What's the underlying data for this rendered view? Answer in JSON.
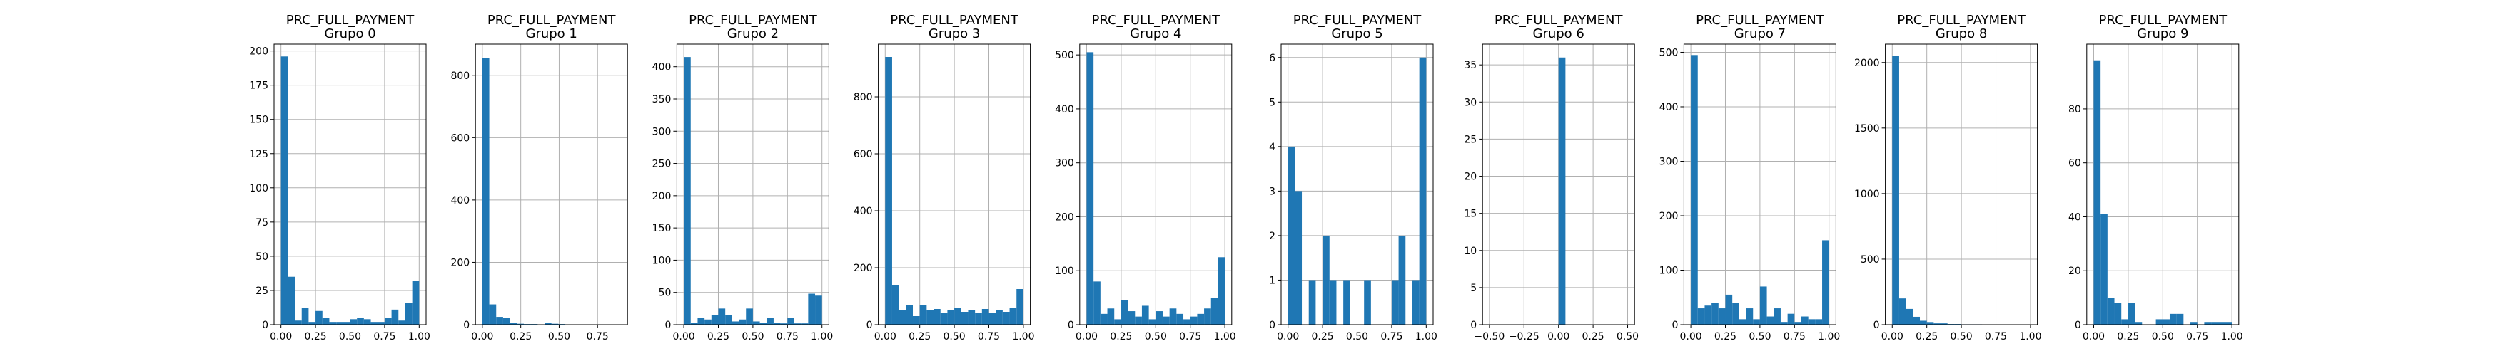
{
  "figure": {
    "bar_color": "#1f77b4",
    "grid_color": "#b0b0b0",
    "background": "#ffffff"
  },
  "chart_data": [
    {
      "type": "bar",
      "title": "PRC_FULL_PAYMENT\nGrupo 0",
      "xlim": [
        -0.05,
        1.05
      ],
      "ylim": [
        0,
        205
      ],
      "xticks": [
        0.0,
        0.25,
        0.5,
        0.75,
        1.0
      ],
      "xtick_labels": [
        "0.00",
        "0.25",
        "0.50",
        "0.75",
        "1.00"
      ],
      "yticks": [
        0,
        25,
        50,
        75,
        100,
        125,
        150,
        175,
        200
      ],
      "ytick_labels": [
        "0",
        "25",
        "50",
        "75",
        "100",
        "125",
        "150",
        "175",
        "200"
      ],
      "bin_start": 0,
      "bin_width": 0.05,
      "grid": true,
      "values": [
        196,
        35,
        3,
        12,
        2,
        10,
        5,
        2,
        2,
        2,
        4,
        5,
        4,
        2,
        2,
        5,
        11,
        3,
        16,
        32
      ]
    },
    {
      "type": "bar",
      "title": "PRC_FULL_PAYMENT\nGrupo 1",
      "xlim": [
        -0.045,
        0.945
      ],
      "ylim": [
        0,
        900
      ],
      "xticks": [
        0.0,
        0.25,
        0.5,
        0.75
      ],
      "xtick_labels": [
        "0.00",
        "0.25",
        "0.50",
        "0.75"
      ],
      "yticks": [
        0,
        200,
        400,
        600,
        800
      ],
      "ytick_labels": [
        "0",
        "200",
        "400",
        "600",
        "800"
      ],
      "bin_start": 0,
      "bin_width": 0.045,
      "grid": true,
      "values": [
        855,
        65,
        25,
        22,
        5,
        3,
        2,
        2,
        1,
        5,
        3,
        2,
        1,
        1,
        1,
        1,
        1,
        0,
        1,
        1
      ]
    },
    {
      "type": "bar",
      "title": "PRC_FULL_PAYMENT\nGrupo 2",
      "xlim": [
        -0.05,
        1.05
      ],
      "ylim": [
        0,
        435
      ],
      "xticks": [
        0.0,
        0.25,
        0.5,
        0.75,
        1.0
      ],
      "xtick_labels": [
        "0.00",
        "0.25",
        "0.50",
        "0.75",
        "1.00"
      ],
      "yticks": [
        0,
        50,
        100,
        150,
        200,
        250,
        300,
        350,
        400
      ],
      "ytick_labels": [
        "0",
        "50",
        "100",
        "150",
        "200",
        "250",
        "300",
        "350",
        "400"
      ],
      "bin_start": 0,
      "bin_width": 0.05,
      "grid": true,
      "values": [
        415,
        3,
        10,
        8,
        15,
        25,
        15,
        5,
        8,
        25,
        5,
        3,
        10,
        3,
        2,
        10,
        2,
        2,
        48,
        45
      ]
    },
    {
      "type": "bar",
      "title": "PRC_FULL_PAYMENT\nGrupo 3",
      "xlim": [
        -0.05,
        1.05
      ],
      "ylim": [
        0,
        985
      ],
      "xticks": [
        0.0,
        0.25,
        0.5,
        0.75,
        1.0
      ],
      "xtick_labels": [
        "0.00",
        "0.25",
        "0.50",
        "0.75",
        "1.00"
      ],
      "yticks": [
        0,
        200,
        400,
        600,
        800
      ],
      "ytick_labels": [
        "0",
        "200",
        "400",
        "600",
        "800"
      ],
      "bin_start": 0,
      "bin_width": 0.05,
      "grid": true,
      "values": [
        940,
        140,
        50,
        70,
        30,
        70,
        50,
        55,
        40,
        50,
        60,
        45,
        50,
        40,
        55,
        40,
        50,
        45,
        60,
        125
      ]
    },
    {
      "type": "bar",
      "title": "PRC_FULL_PAYMENT\nGrupo 4",
      "xlim": [
        -0.05,
        1.05
      ],
      "ylim": [
        0,
        520
      ],
      "xticks": [
        0.0,
        0.25,
        0.5,
        0.75,
        1.0
      ],
      "xtick_labels": [
        "0.00",
        "0.25",
        "0.50",
        "0.75",
        "1.00"
      ],
      "yticks": [
        0,
        100,
        200,
        300,
        400,
        500
      ],
      "ytick_labels": [
        "0",
        "100",
        "200",
        "300",
        "400",
        "500"
      ],
      "bin_start": 0,
      "bin_width": 0.05,
      "grid": true,
      "values": [
        505,
        80,
        20,
        30,
        10,
        45,
        25,
        15,
        35,
        10,
        25,
        15,
        30,
        20,
        10,
        15,
        20,
        30,
        50,
        125
      ]
    },
    {
      "type": "bar",
      "title": "PRC_FULL_PAYMENT\nGrupo 5",
      "xlim": [
        -0.05,
        1.05
      ],
      "ylim": [
        0,
        6.3
      ],
      "xticks": [
        0.0,
        0.25,
        0.5,
        0.75,
        1.0
      ],
      "xtick_labels": [
        "0.00",
        "0.25",
        "0.50",
        "0.75",
        "1.00"
      ],
      "yticks": [
        0,
        1,
        2,
        3,
        4,
        5,
        6
      ],
      "ytick_labels": [
        "0",
        "1",
        "2",
        "3",
        "4",
        "5",
        "6"
      ],
      "bin_start": 0,
      "bin_width": 0.05,
      "grid": true,
      "values": [
        4,
        3,
        0,
        1,
        0,
        2,
        1,
        0,
        1,
        0,
        0,
        1,
        0,
        0,
        0,
        1,
        2,
        0,
        1,
        6
      ]
    },
    {
      "type": "bar",
      "title": "PRC_FULL_PAYMENT\nGrupo 6",
      "xlim": [
        -0.55,
        0.55
      ],
      "ylim": [
        0,
        37.8
      ],
      "xticks": [
        -0.5,
        -0.25,
        0.0,
        0.25,
        0.5
      ],
      "xtick_labels": [
        "−0.50",
        "−0.25",
        "0.00",
        "0.25",
        "0.50"
      ],
      "yticks": [
        0,
        5,
        10,
        15,
        20,
        25,
        30,
        35
      ],
      "ytick_labels": [
        "0",
        "5",
        "10",
        "15",
        "20",
        "25",
        "30",
        "35"
      ],
      "bin_start": -0.5,
      "bin_width": 0.05,
      "grid": true,
      "values": [
        0,
        0,
        0,
        0,
        0,
        0,
        0,
        0,
        0,
        0,
        36,
        0,
        0,
        0,
        0,
        0,
        0,
        0,
        0,
        0
      ]
    },
    {
      "type": "bar",
      "title": "PRC_FULL_PAYMENT\nGrupo 7",
      "xlim": [
        -0.05,
        1.05
      ],
      "ylim": [
        0,
        515
      ],
      "xticks": [
        0.0,
        0.25,
        0.5,
        0.75,
        1.0
      ],
      "xtick_labels": [
        "0.00",
        "0.25",
        "0.50",
        "0.75",
        "1.00"
      ],
      "yticks": [
        0,
        100,
        200,
        300,
        400,
        500
      ],
      "ytick_labels": [
        "0",
        "100",
        "200",
        "300",
        "400",
        "500"
      ],
      "bin_start": 0,
      "bin_width": 0.05,
      "grid": true,
      "values": [
        495,
        30,
        35,
        40,
        30,
        55,
        40,
        10,
        30,
        10,
        70,
        15,
        30,
        5,
        20,
        5,
        15,
        10,
        10,
        155
      ]
    },
    {
      "type": "bar",
      "title": "PRC_FULL_PAYMENT\nGrupo 8",
      "xlim": [
        -0.05,
        1.05
      ],
      "ylim": [
        0,
        2140
      ],
      "xticks": [
        0.0,
        0.25,
        0.5,
        0.75,
        1.0
      ],
      "xtick_labels": [
        "0.00",
        "0.25",
        "0.50",
        "0.75",
        "1.00"
      ],
      "yticks": [
        0,
        500,
        1000,
        1500,
        2000
      ],
      "ytick_labels": [
        "0",
        "500",
        "1000",
        "1500",
        "2000"
      ],
      "bin_start": 0,
      "bin_width": 0.05,
      "grid": true,
      "values": [
        2050,
        200,
        120,
        60,
        30,
        20,
        10,
        10,
        5,
        5,
        3,
        3,
        3,
        2,
        2,
        2,
        2,
        2,
        2,
        2
      ]
    },
    {
      "type": "bar",
      "title": "PRC_FULL_PAYMENT\nGrupo 9",
      "xlim": [
        -0.05,
        1.05
      ],
      "ylim": [
        0,
        104
      ],
      "xticks": [
        0.0,
        0.25,
        0.5,
        0.75,
        1.0
      ],
      "xtick_labels": [
        "0.00",
        "0.25",
        "0.50",
        "0.75",
        "1.00"
      ],
      "yticks": [
        0,
        20,
        40,
        60,
        80
      ],
      "ytick_labels": [
        "0",
        "20",
        "40",
        "60",
        "80"
      ],
      "bin_start": 0,
      "bin_width": 0.05,
      "grid": true,
      "values": [
        98,
        41,
        10,
        8,
        2,
        8,
        1,
        0,
        0,
        2,
        2,
        4,
        4,
        0,
        1,
        0,
        1,
        1,
        1,
        1
      ]
    }
  ]
}
